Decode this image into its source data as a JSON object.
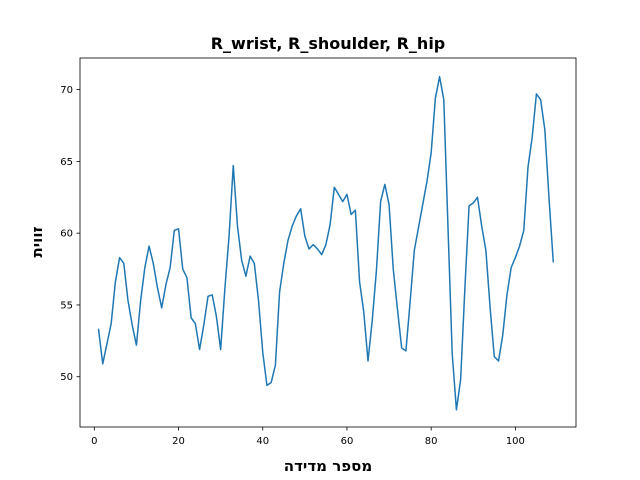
{
  "chart_data": {
    "type": "line",
    "title": "R_wrist, R_shoulder, R_hip",
    "xlabel": "מספר מדידה",
    "ylabel": "זווית",
    "xlim": [
      -3.4,
      114.4
    ],
    "ylim": [
      46.5,
      72.2
    ],
    "xticks": [
      0,
      20,
      40,
      60,
      80,
      100
    ],
    "yticks": [
      50,
      55,
      60,
      65,
      70
    ],
    "grid": false,
    "series": [
      {
        "color": "#1f77b4",
        "x": [
          1,
          2,
          3,
          4,
          5,
          6,
          7,
          8,
          9,
          10,
          11,
          12,
          13,
          14,
          15,
          16,
          17,
          18,
          19,
          20,
          21,
          22,
          23,
          24,
          25,
          26,
          27,
          28,
          29,
          30,
          31,
          32,
          33,
          34,
          35,
          36,
          37,
          38,
          39,
          40,
          41,
          42,
          43,
          44,
          45,
          46,
          47,
          48,
          49,
          50,
          51,
          52,
          53,
          54,
          55,
          56,
          57,
          58,
          59,
          60,
          61,
          62,
          63,
          64,
          65,
          66,
          67,
          68,
          69,
          70,
          71,
          72,
          73,
          74,
          75,
          76,
          77,
          78,
          79,
          80,
          81,
          82,
          83,
          84,
          85,
          86,
          87,
          88,
          89,
          90,
          91,
          92,
          93,
          94,
          95,
          96,
          97,
          98,
          99,
          100,
          101,
          102,
          103,
          104,
          105,
          106,
          107,
          108,
          109
        ],
        "values": [
          53.3,
          50.9,
          52.3,
          53.7,
          56.6,
          58.3,
          57.9,
          55.3,
          53.6,
          52.2,
          55.3,
          57.6,
          59.1,
          57.9,
          56.2,
          54.8,
          56.4,
          57.6,
          60.2,
          60.3,
          57.5,
          56.9,
          54.1,
          53.7,
          51.9,
          53.6,
          55.6,
          55.7,
          54.2,
          51.9,
          56.1,
          59.8,
          64.7,
          60.5,
          58.1,
          57.0,
          58.4,
          57.9,
          55.3,
          51.7,
          49.4,
          49.6,
          50.8,
          55.9,
          57.9,
          59.5,
          60.5,
          61.2,
          61.7,
          59.8,
          58.9,
          59.2,
          58.9,
          58.5,
          59.2,
          60.6,
          63.2,
          62.7,
          62.2,
          62.7,
          61.3,
          61.6,
          56.6,
          54.5,
          51.1,
          53.9,
          57.4,
          62.2,
          63.4,
          62.0,
          57.5,
          54.7,
          52.0,
          51.8,
          55.2,
          58.8,
          60.4,
          62.0,
          63.6,
          65.6,
          69.4,
          70.9,
          69.3,
          60.4,
          51.6,
          47.7,
          49.8,
          56.1,
          61.9,
          62.1,
          62.5,
          60.5,
          58.8,
          54.8,
          51.4,
          51.1,
          52.9,
          55.7,
          57.6,
          58.3,
          59.1,
          60.2,
          64.6,
          66.7,
          69.7,
          69.3,
          67.2,
          62.4,
          58.0
        ]
      }
    ]
  }
}
